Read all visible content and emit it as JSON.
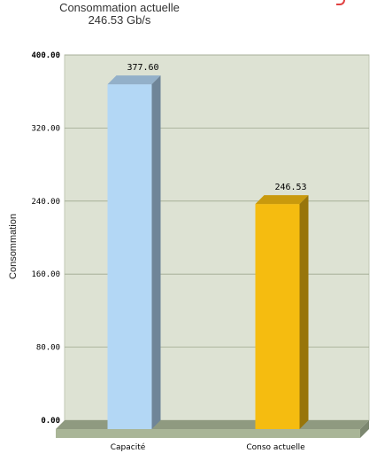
{
  "chart_data": {
    "type": "bar",
    "title": "Consommation actuelle",
    "subtitle": "246.53 Gb/s",
    "xlabel": "",
    "ylabel": "Consommation",
    "categories": [
      "Capacité",
      "Conso actuelle"
    ],
    "values": [
      377.6,
      246.53
    ],
    "value_labels": [
      "377.60",
      "246.53"
    ],
    "colors": [
      "#b3d7f5",
      "#f5bc10"
    ],
    "ylim": [
      0,
      400
    ],
    "yticks": [
      0,
      80,
      160,
      240,
      320,
      400
    ],
    "ytick_labels": [
      "0.00",
      "80.00",
      "160.00",
      "240.00",
      "320.00",
      "400.00"
    ],
    "grid": true,
    "plot_background": "#dde2d3",
    "legend": "none"
  }
}
